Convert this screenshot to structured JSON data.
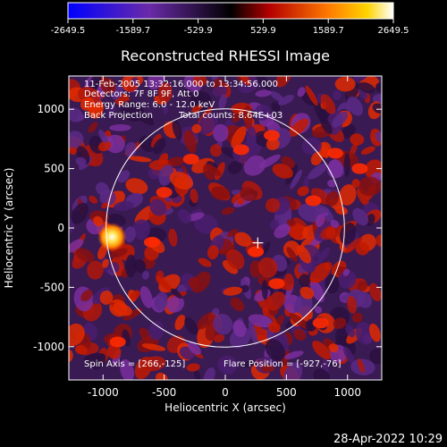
{
  "chart_data": {
    "type": "heatmap",
    "title": "Reconstructed RHESSI Image",
    "xlabel": "Heliocentric X (arcsec)",
    "ylabel": "Heliocentric Y (arcsec)",
    "xlim": [
      -1280,
      1280
    ],
    "ylim": [
      -1280,
      1280
    ],
    "x_ticks": [
      -1000,
      -500,
      0,
      500,
      1000
    ],
    "y_ticks": [
      -1000,
      -500,
      0,
      500,
      1000
    ],
    "colorbar": {
      "colormap": "blue-black-red-yellow-white",
      "range": [
        -2649.5,
        2649.5
      ],
      "tick_labels": [
        "-2649.5",
        "-1589.7",
        "-529.9",
        "529.9",
        "1589.7",
        "2649.5"
      ]
    },
    "annotations": [
      "11-Feb-2005 13:32:16.000 to 13:34:56.000",
      "Detectors: 7F 8F 9F, Att 0",
      "Energy Range: 6.0 - 12.0 keV",
      "Back Projection",
      "Total counts: 8.64E+03"
    ],
    "footer_left": "Spin Axis = [266,-125]",
    "footer_right": "Flare Position = [-927,-76]",
    "limb_circle": {
      "center": [
        0,
        0
      ],
      "radius_arcsec": 975
    },
    "spin_axis": [
      266,
      -125
    ],
    "flare_source": {
      "x": -927,
      "y": -76,
      "peak": 2649.5
    },
    "hot_spots": [
      {
        "x": 130,
        "y": 660
      },
      {
        "x": 900,
        "y": 630
      },
      {
        "x": 380,
        "y": 780
      },
      {
        "x": -280,
        "y": 580
      },
      {
        "x": 1100,
        "y": 500
      },
      {
        "x": 720,
        "y": 230
      },
      {
        "x": 250,
        "y": -200
      },
      {
        "x": -880,
        "y": -960
      },
      {
        "x": -500,
        "y": 300
      },
      {
        "x": 420,
        "y": -470
      },
      {
        "x": -600,
        "y": -120
      },
      {
        "x": 780,
        "y": -800
      }
    ]
  },
  "timestamp": "28-Apr-2022 10:29"
}
